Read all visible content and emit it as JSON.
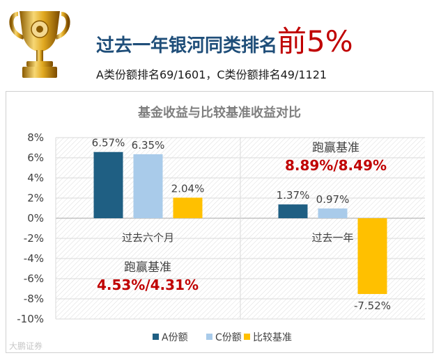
{
  "header": {
    "headline": "过去一年银河同类排名",
    "headline_emphasis": "前5%",
    "subline": "A类份额排名69/1601，C类份额排名49/1121"
  },
  "icons": {
    "trophy": "trophy-icon"
  },
  "colors": {
    "headline": "#1f4e79",
    "emphasis": "#c00000",
    "series_a": "#1f5f83",
    "series_c": "#a9cbea",
    "series_benchmark": "#ffc000"
  },
  "watermark": "大鹏证券",
  "chart_data": {
    "type": "bar",
    "title": "基金收益与比较基准收益对比",
    "categories": [
      "过去六个月",
      "过去一年"
    ],
    "series": [
      {
        "name": "A份额",
        "values": [
          6.57,
          1.37
        ],
        "labels": [
          "6.57%",
          "1.37%"
        ]
      },
      {
        "name": "C份额",
        "values": [
          6.35,
          0.97
        ],
        "labels": [
          "6.35%",
          "0.97%"
        ]
      },
      {
        "name": "比较基准",
        "values": [
          2.04,
          -7.52
        ],
        "labels": [
          "2.04%",
          "-7.52%"
        ]
      }
    ],
    "ylim": [
      -10,
      8
    ],
    "yticks": [
      8,
      6,
      4,
      2,
      0,
      -2,
      -4,
      -6,
      -8,
      -10
    ],
    "ytick_labels": [
      "8%",
      "6%",
      "4%",
      "2%",
      "0%",
      "-2%",
      "-4%",
      "-6%",
      "-8%",
      "-10%"
    ],
    "grid": true,
    "legend": "bottom",
    "annotations": [
      {
        "label": "跑赢基准",
        "value": "4.53%/4.31%"
      },
      {
        "label": "跑赢基准",
        "value": "8.89%/8.49%"
      }
    ]
  }
}
